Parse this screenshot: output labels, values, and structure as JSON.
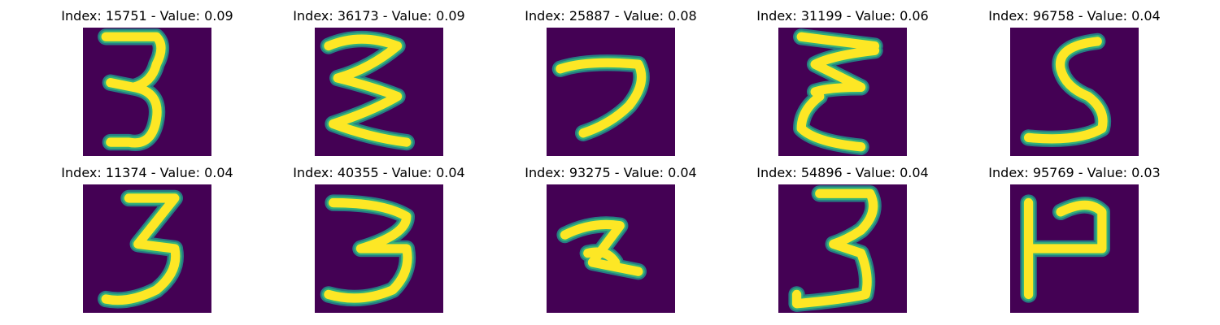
{
  "panels": [
    {
      "title": "Index: 15751 - Value: 0.09",
      "digit": "3",
      "style": "thin-3"
    },
    {
      "title": "Index: 36173 - Value: 0.09",
      "digit": "3",
      "style": "wavy-3"
    },
    {
      "title": "Index: 25887 - Value: 0.08",
      "digit": "7",
      "style": "hook-7"
    },
    {
      "title": "Index: 31199 - Value: 0.06",
      "digit": "3",
      "style": "mirror-3"
    },
    {
      "title": "Index: 96758 - Value: 0.04",
      "digit": "5",
      "style": "s-5"
    },
    {
      "title": "Index: 11374 - Value: 0.04",
      "digit": "3",
      "style": "angular-3"
    },
    {
      "title": "Index: 40355 - Value: 0.04",
      "digit": "3",
      "style": "round-3"
    },
    {
      "title": "Index: 93275 - Value: 0.04",
      "digit": "2",
      "style": "z-2"
    },
    {
      "title": "Index: 54896 - Value: 0.04",
      "digit": "3",
      "style": "tall-3"
    },
    {
      "title": "Index: 95769 - Value: 0.03",
      "digit": "4",
      "style": "bar-4"
    }
  ],
  "colors": {
    "background": "#440154",
    "stroke": "#fde725",
    "edge": "#21918c",
    "edge2": "#35b779"
  }
}
